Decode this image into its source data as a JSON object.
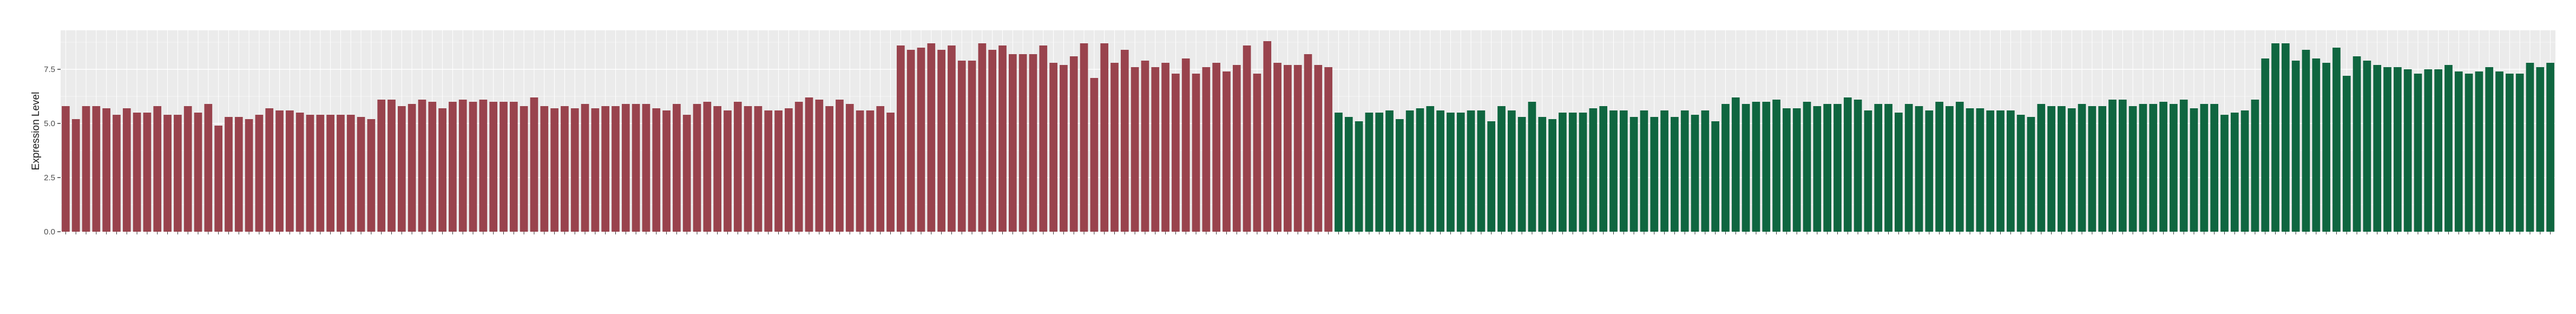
{
  "chart_data": {
    "type": "bar",
    "title": "",
    "xlabel": "",
    "ylabel": "Expression Level",
    "ylim": [
      0,
      9.3
    ],
    "yticks": [
      {
        "value": 0,
        "label": "0.0"
      },
      {
        "value": 2.5,
        "label": "2.5"
      },
      {
        "value": 5,
        "label": "5.0"
      },
      {
        "value": 7.5,
        "label": "7.5"
      }
    ],
    "grid": true,
    "legend": "none",
    "group_colors": {
      "group_a": "#99434d",
      "group_b": "#0f6640"
    },
    "panel_color": "#ebebeb",
    "grid_major_color": "#ffffff",
    "grid_minor_color": "#f4f4f4",
    "series": [
      {
        "color": "#99434d",
        "values": [
          5.8,
          5.2,
          5.8,
          5.8,
          5.7,
          5.4,
          5.7,
          5.5,
          5.5,
          5.8,
          5.4,
          5.4,
          5.8,
          5.5,
          5.9,
          4.9,
          5.3,
          5.3,
          5.2,
          5.4,
          5.7,
          5.6,
          5.6,
          5.5,
          5.4,
          5.4,
          5.4,
          5.4,
          5.4,
          5.3,
          5.2,
          6.1,
          6.1,
          5.8,
          5.9,
          6.1,
          6.0,
          5.7,
          6.0,
          6.1,
          6.0,
          6.1,
          6.0,
          6.0,
          6.0,
          5.8,
          6.2,
          5.8,
          5.7,
          5.8,
          5.7,
          5.9,
          5.7,
          5.8,
          5.8,
          5.9,
          5.9,
          5.9,
          5.7,
          5.6,
          5.9,
          5.4,
          5.9,
          6.0,
          5.8,
          5.6,
          6.0,
          5.8,
          5.8,
          5.6,
          5.6,
          5.7,
          6.0,
          6.2,
          6.1,
          5.8,
          6.1,
          5.9,
          5.6,
          5.6,
          5.8,
          5.5,
          8.6,
          8.4,
          8.5,
          8.7,
          8.4,
          8.6,
          7.9,
          7.9,
          8.7,
          8.4,
          8.6,
          8.2,
          8.2,
          8.2,
          8.6,
          7.8,
          7.7,
          8.1,
          8.7,
          7.1,
          8.7,
          7.8,
          8.4,
          7.6,
          7.9,
          7.6,
          7.8,
          7.3,
          8.0,
          7.3,
          7.6,
          7.8,
          7.4,
          7.7,
          8.6,
          7.3,
          8.8,
          7.8,
          7.7,
          7.7,
          8.2,
          7.7,
          7.6
        ]
      },
      {
        "color": "#0f6640",
        "values": [
          5.5,
          5.3,
          5.1,
          5.5,
          5.5,
          5.6,
          5.2,
          5.6,
          5.7,
          5.8,
          5.6,
          5.5,
          5.5,
          5.6,
          5.6,
          5.1,
          5.8,
          5.6,
          5.3,
          6.0,
          5.3,
          5.2,
          5.5,
          5.5,
          5.5,
          5.7,
          5.8,
          5.6,
          5.6,
          5.3,
          5.6,
          5.3,
          5.6,
          5.3,
          5.6,
          5.4,
          5.6,
          5.1,
          5.9,
          6.2,
          5.9,
          6.0,
          6.0,
          6.1,
          5.7,
          5.7,
          6.0,
          5.8,
          5.9,
          5.9,
          6.2,
          6.1,
          5.6,
          5.9,
          5.9,
          5.5,
          5.9,
          5.8,
          5.6,
          6.0,
          5.8,
          6.0,
          5.7,
          5.7,
          5.6,
          5.6,
          5.6,
          5.4,
          5.3,
          5.9,
          5.8,
          5.8,
          5.7,
          5.9,
          5.8,
          5.8,
          6.1,
          6.1,
          5.8,
          5.9,
          5.9,
          6.0,
          5.9,
          6.1,
          5.7,
          5.9,
          5.9,
          5.4,
          5.5,
          5.6,
          6.1,
          8.0,
          8.7,
          8.7,
          7.9,
          8.4,
          8.0,
          7.8,
          8.5,
          7.2,
          8.1,
          7.9,
          7.7,
          7.6,
          7.6,
          7.5,
          7.3,
          7.5,
          7.5,
          7.7,
          7.4,
          7.3,
          7.4,
          7.6,
          7.4,
          7.3,
          7.3,
          7.8,
          7.6,
          7.8
        ]
      }
    ]
  }
}
